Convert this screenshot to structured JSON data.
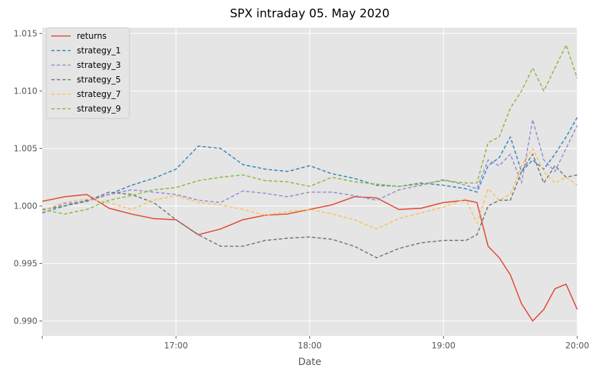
{
  "chart_data": {
    "type": "line",
    "title": "SPX intraday 05. May 2020",
    "xlabel": "Date",
    "ylabel": "",
    "xlim": [
      "16:00",
      "20:00"
    ],
    "ylim": [
      0.9887,
      1.0155
    ],
    "x_ticks": [
      {
        "t": "17:00",
        "label": "17:00"
      },
      {
        "t": "18:00",
        "label": "18:00"
      },
      {
        "t": "19:00",
        "label": "19:00"
      },
      {
        "t": "20:00",
        "label": "20:00"
      }
    ],
    "y_ticks": [
      {
        "v": 0.99,
        "label": "0.990"
      },
      {
        "v": 0.995,
        "label": "0.995"
      },
      {
        "v": 1.0,
        "label": "1.000"
      },
      {
        "v": 1.005,
        "label": "1.005"
      },
      {
        "v": 1.01,
        "label": "1.010"
      },
      {
        "v": 1.015,
        "label": "1.015"
      }
    ],
    "grid": true,
    "legend_position": "top-left",
    "style": "ggplot",
    "x": [
      "16:00",
      "16:10",
      "16:20",
      "16:30",
      "16:40",
      "16:50",
      "17:00",
      "17:10",
      "17:20",
      "17:30",
      "17:40",
      "17:50",
      "18:00",
      "18:10",
      "18:20",
      "18:30",
      "18:40",
      "18:50",
      "19:00",
      "19:10",
      "19:15",
      "19:20",
      "19:25",
      "19:30",
      "19:35",
      "19:40",
      "19:45",
      "19:50",
      "19:55",
      "20:00"
    ],
    "series": [
      {
        "name": "returns",
        "dash": "solid",
        "color": "#E24A33",
        "values": [
          1.0004,
          1.0008,
          1.001,
          0.9998,
          0.9993,
          0.9989,
          0.9988,
          0.9975,
          0.998,
          0.9988,
          0.9992,
          0.9993,
          0.9997,
          1.0001,
          1.0008,
          1.0007,
          0.9997,
          0.9998,
          1.0003,
          1.0005,
          1.0003,
          0.9965,
          0.9955,
          0.994,
          0.9915,
          0.99,
          0.991,
          0.9928,
          0.9932,
          0.991
        ]
      },
      {
        "name": "strategy_1",
        "dash": "dashed",
        "color": "#348ABD",
        "values": [
          0.9994,
          1.0,
          1.0005,
          1.001,
          1.0018,
          1.0024,
          1.0032,
          1.0052,
          1.005,
          1.0036,
          1.0032,
          1.003,
          1.0035,
          1.0028,
          1.0024,
          1.0018,
          1.0017,
          1.002,
          1.0018,
          1.0015,
          1.0012,
          1.0035,
          1.0042,
          1.006,
          1.003,
          1.004,
          1.0032,
          1.0045,
          1.006,
          1.0077
        ]
      },
      {
        "name": "strategy_3",
        "dash": "dashed",
        "color": "#988ED5",
        "values": [
          0.9996,
          1.0002,
          1.0004,
          1.001,
          1.0014,
          1.0012,
          1.001,
          1.0005,
          1.0003,
          1.0013,
          1.0011,
          1.0008,
          1.0012,
          1.0012,
          1.0009,
          1.0005,
          1.0014,
          1.0018,
          1.0023,
          1.0018,
          1.0015,
          1.004,
          1.0035,
          1.0045,
          1.002,
          1.0075,
          1.004,
          1.003,
          1.005,
          1.007
        ]
      },
      {
        "name": "strategy_5",
        "dash": "dashed",
        "color": "#777777",
        "values": [
          0.9997,
          1.0,
          1.0004,
          1.0012,
          1.001,
          1.0003,
          0.9988,
          0.9975,
          0.9965,
          0.9965,
          0.997,
          0.9972,
          0.9973,
          0.9971,
          0.9965,
          0.9955,
          0.9963,
          0.9968,
          0.997,
          0.997,
          0.9975,
          1.0,
          1.0005,
          1.0005,
          1.003,
          1.0045,
          1.002,
          1.0035,
          1.0025,
          1.0027
        ]
      },
      {
        "name": "strategy_7",
        "dash": "dashed",
        "color": "#FBC15E",
        "values": [
          0.9996,
          1.0003,
          1.0006,
          1.0003,
          0.9997,
          1.0005,
          1.0009,
          1.0003,
          1.0001,
          0.9997,
          0.9992,
          0.9995,
          0.9997,
          0.9993,
          0.9988,
          0.998,
          0.9989,
          0.9994,
          0.9999,
          1.0006,
          0.9985,
          1.0015,
          1.0005,
          1.001,
          1.0035,
          1.005,
          1.003,
          1.002,
          1.0025,
          1.0018
        ]
      },
      {
        "name": "strategy_9",
        "dash": "dashed",
        "color": "#8EBA42",
        "values": [
          0.9997,
          0.9993,
          0.9997,
          1.0005,
          1.0009,
          1.0014,
          1.0016,
          1.0022,
          1.0025,
          1.0027,
          1.0022,
          1.0021,
          1.0017,
          1.0025,
          1.0021,
          1.0019,
          1.0017,
          1.0019,
          1.0022,
          1.002,
          1.002,
          1.0055,
          1.006,
          1.0085,
          1.01,
          1.012,
          1.01,
          1.012,
          1.014,
          1.0111
        ]
      }
    ]
  }
}
